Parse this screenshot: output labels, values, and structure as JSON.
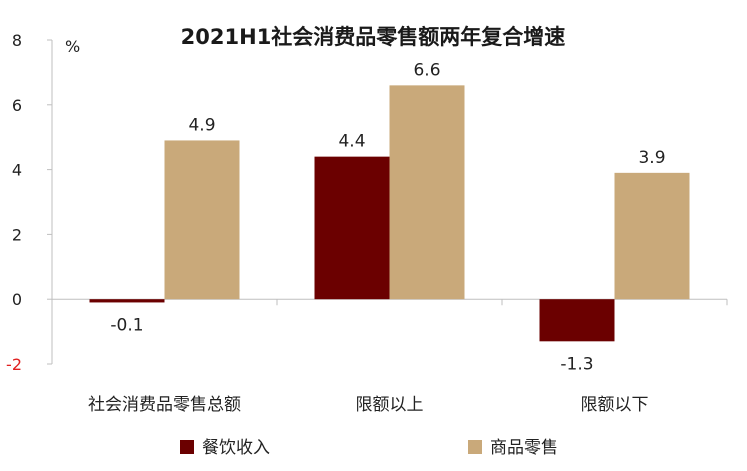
{
  "chart_data": {
    "type": "bar",
    "title": "2021H1社会消费品零售额两年复合增速",
    "unit_label": "%",
    "categories": [
      "社会消费品零售总额",
      "限额以上",
      "限额以下"
    ],
    "series": [
      {
        "name": "餐饮收入",
        "values": [
          -0.1,
          4.4,
          -1.3
        ],
        "color": "#6b0000"
      },
      {
        "name": "商品零售",
        "values": [
          4.9,
          6.6,
          3.9
        ],
        "color": "#c9a97a"
      }
    ],
    "ylim": [
      -2,
      8
    ],
    "yticks": [
      -2,
      0,
      2,
      4,
      6,
      8
    ],
    "negative_tick_color": "#e02020",
    "grid": false,
    "legend_position": "bottom"
  }
}
